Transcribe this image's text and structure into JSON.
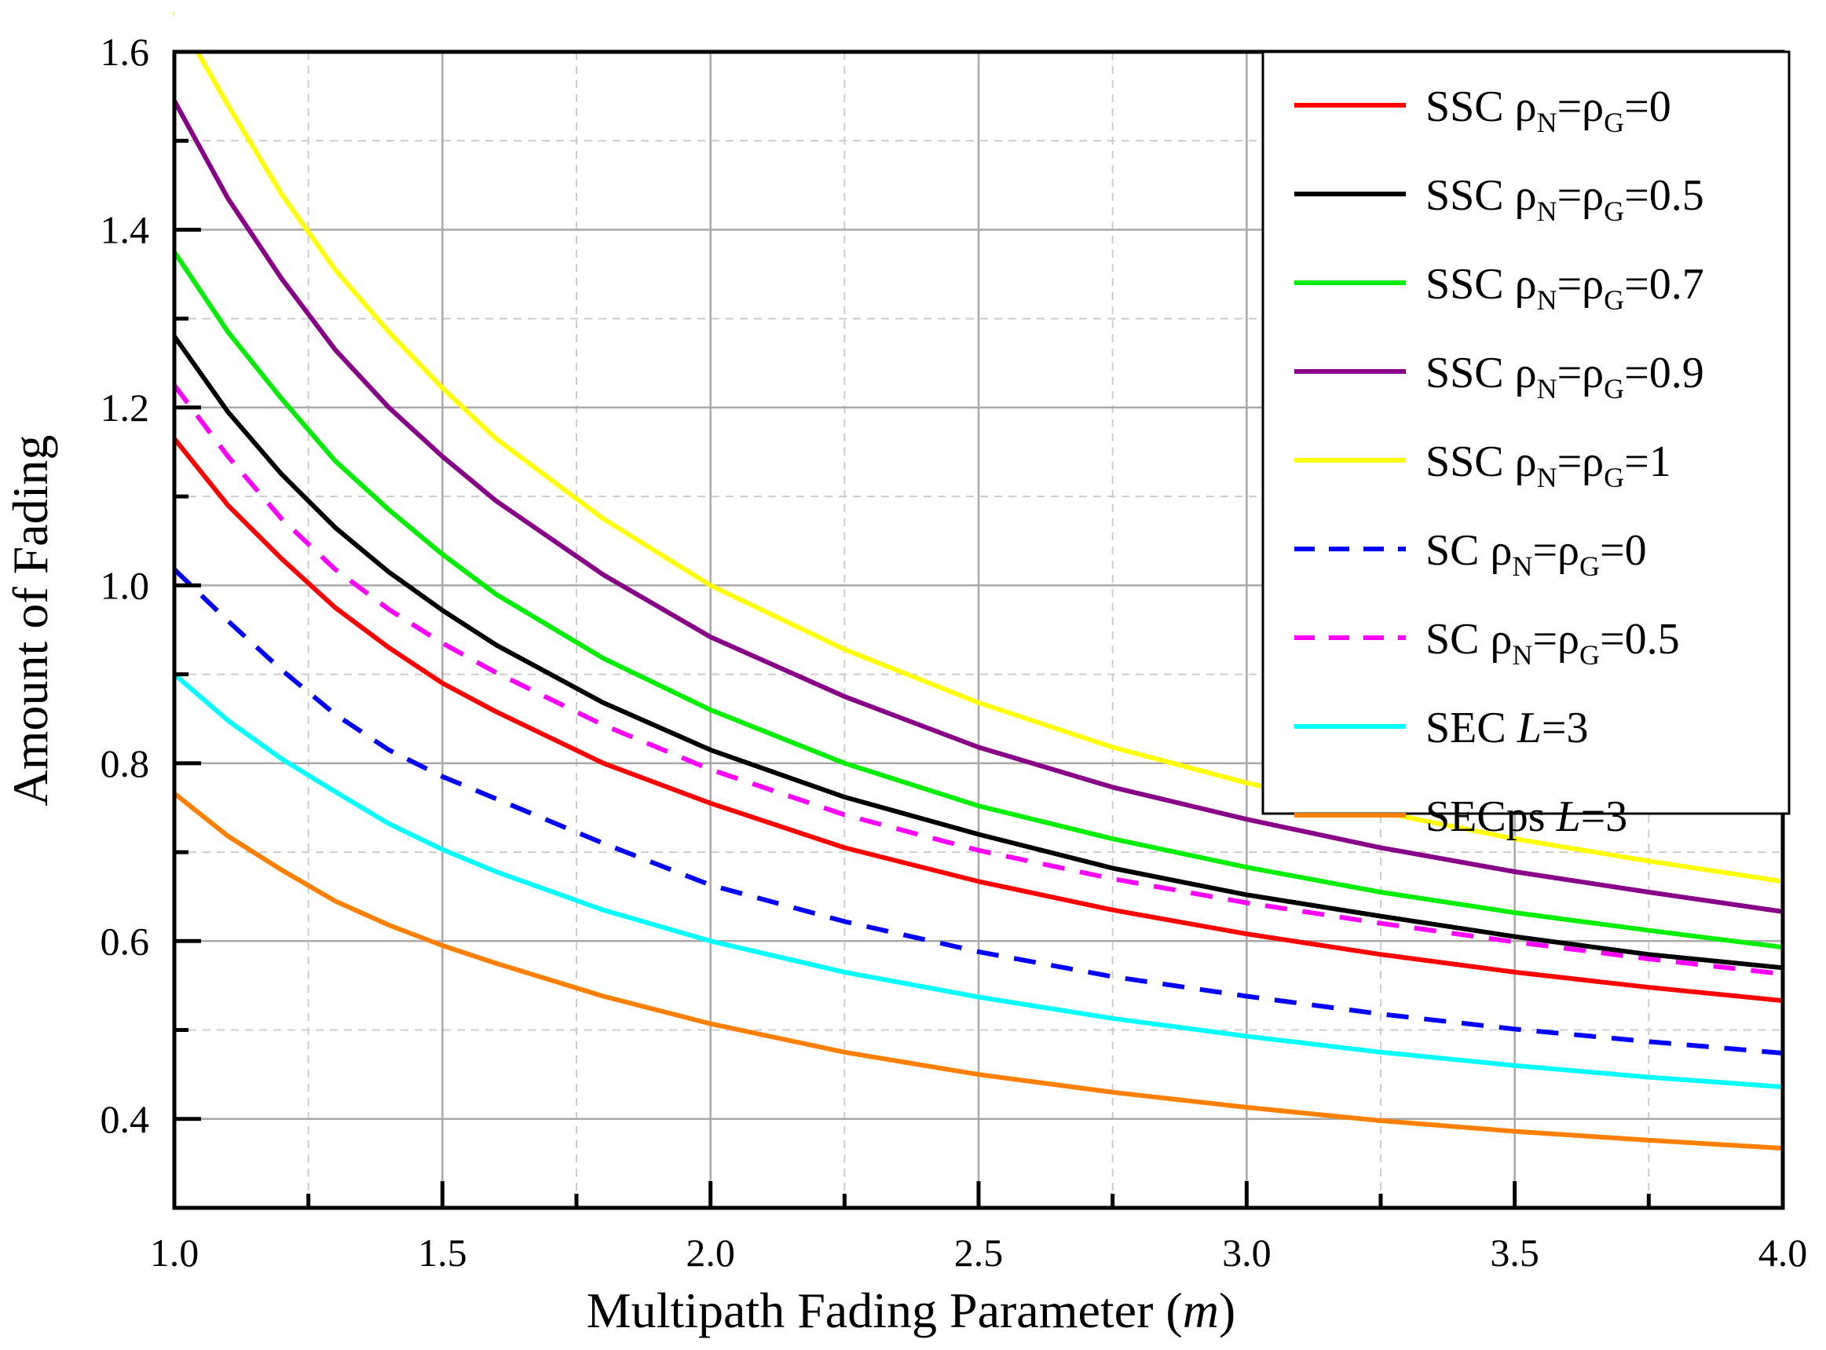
{
  "chart_data": {
    "type": "line",
    "xlabel": "Multipath Fading Parameter",
    "xlabel_symbol": "m",
    "ylabel": "Amount of Fading",
    "xlim": [
      1.0,
      4.0
    ],
    "ylim": [
      0.3,
      1.6
    ],
    "xticks": [
      1.0,
      1.5,
      2.0,
      2.5,
      3.0,
      3.5,
      4.0
    ],
    "xtick_labels": [
      "1.0",
      "1.5",
      "2.0",
      "2.5",
      "3.0",
      "3.5",
      "4.0"
    ],
    "yticks": [
      0.4,
      0.6,
      0.8,
      1.0,
      1.2,
      1.4,
      1.6
    ],
    "ytick_labels": [
      "0.4",
      "0.6",
      "0.8",
      "1.0",
      "1.2",
      "1.4",
      "1.6"
    ],
    "grid": true,
    "legend_position": "top-right",
    "x": [
      1.0,
      1.1,
      1.2,
      1.3,
      1.4,
      1.5,
      1.6,
      1.8,
      2.0,
      2.25,
      2.5,
      2.75,
      3.0,
      3.25,
      3.5,
      3.75,
      4.0
    ],
    "series": [
      {
        "name": "SSC ρN=ρG=0",
        "prefix": "SSC ",
        "L": "",
        "rho": "0",
        "color": "#ff0000",
        "dash": false,
        "values": [
          1.165,
          1.09,
          1.03,
          0.975,
          0.93,
          0.89,
          0.858,
          0.8,
          0.755,
          0.705,
          0.667,
          0.635,
          0.608,
          0.585,
          0.565,
          0.548,
          0.533
        ]
      },
      {
        "name": "SSC ρN=ρG=0.5",
        "prefix": "SSC ",
        "L": "",
        "rho": "0.5",
        "color": "#000000",
        "dash": false,
        "values": [
          1.28,
          1.195,
          1.125,
          1.065,
          1.015,
          0.972,
          0.933,
          0.868,
          0.815,
          0.762,
          0.72,
          0.682,
          0.652,
          0.628,
          0.605,
          0.585,
          0.57
        ]
      },
      {
        "name": "SSC ρN=ρG=0.7",
        "prefix": "SSC ",
        "L": "",
        "rho": "0.7",
        "color": "#00ee00",
        "dash": false,
        "values": [
          1.375,
          1.285,
          1.21,
          1.14,
          1.085,
          1.035,
          0.99,
          0.918,
          0.86,
          0.8,
          0.752,
          0.715,
          0.683,
          0.655,
          0.632,
          0.612,
          0.593
        ]
      },
      {
        "name": "SSC ρN=ρG=0.9",
        "prefix": "SSC ",
        "L": "",
        "rho": "0.9",
        "color": "#880088",
        "dash": false,
        "values": [
          1.545,
          1.435,
          1.345,
          1.265,
          1.2,
          1.145,
          1.095,
          1.012,
          0.942,
          0.875,
          0.818,
          0.773,
          0.737,
          0.705,
          0.678,
          0.655,
          0.633
        ]
      },
      {
        "name": "SSC ρN=ρG=1",
        "prefix": "SSC ",
        "L": "",
        "rho": "1",
        "color": "#ffff00",
        "dash": false,
        "values": [
          1.645,
          1.54,
          1.44,
          1.355,
          1.285,
          1.222,
          1.165,
          1.075,
          1.0,
          0.928,
          0.868,
          0.818,
          0.778,
          0.745,
          0.715,
          0.69,
          0.667
        ]
      },
      {
        "name": "SC ρN=ρG=0",
        "prefix": "SC   ",
        "L": "",
        "rho": "0",
        "color": "#0000ff",
        "dash": true,
        "values": [
          1.018,
          0.96,
          0.905,
          0.855,
          0.815,
          0.785,
          0.76,
          0.71,
          0.663,
          0.622,
          0.588,
          0.56,
          0.538,
          0.518,
          0.501,
          0.487,
          0.474
        ]
      },
      {
        "name": "SC ρN=ρG=0.5",
        "prefix": "SC   ",
        "L": "",
        "rho": "0.5",
        "color": "#ff00ff",
        "dash": true,
        "values": [
          1.225,
          1.145,
          1.075,
          1.018,
          0.973,
          0.935,
          0.902,
          0.843,
          0.793,
          0.742,
          0.702,
          0.67,
          0.643,
          0.62,
          0.599,
          0.58,
          0.563
        ]
      },
      {
        "name": "SEC L=3",
        "prefix": "SEC ",
        "L": "L",
        "rho": "=3",
        "color": "#00ffff",
        "dash": false,
        "values": [
          0.9,
          0.848,
          0.805,
          0.768,
          0.732,
          0.703,
          0.678,
          0.635,
          0.6,
          0.565,
          0.537,
          0.513,
          0.493,
          0.475,
          0.46,
          0.447,
          0.436
        ]
      },
      {
        "name": "SECps L=3",
        "prefix": "SECps ",
        "L": "L",
        "rho": "=3",
        "color": "#ff8000",
        "dash": false,
        "values": [
          0.766,
          0.718,
          0.68,
          0.645,
          0.618,
          0.595,
          0.575,
          0.538,
          0.507,
          0.475,
          0.45,
          0.43,
          0.413,
          0.398,
          0.386,
          0.376,
          0.367
        ]
      }
    ]
  }
}
